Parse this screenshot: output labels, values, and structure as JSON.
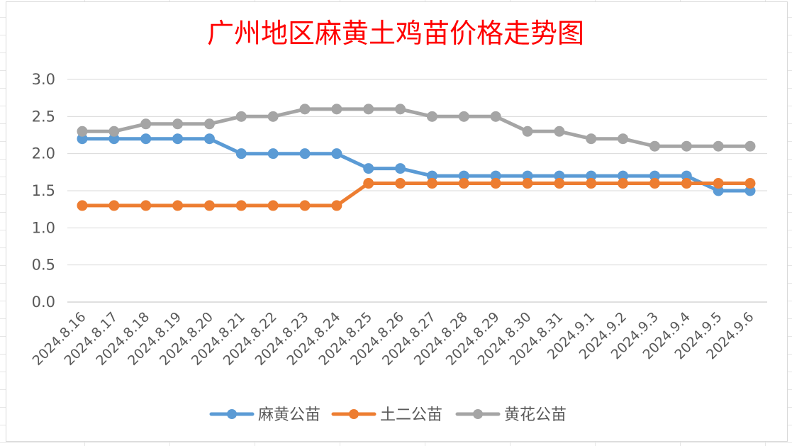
{
  "chart_data": {
    "type": "line",
    "title": "广州地区麻黄土鸡苗价格走势图",
    "xlabel": "",
    "ylabel": "",
    "ylim": [
      0,
      3.0
    ],
    "yticks": [
      "0.0",
      "0.5",
      "1.0",
      "1.5",
      "2.0",
      "2.5",
      "3.0"
    ],
    "grid": "horizontal",
    "legend_position": "bottom",
    "categories": [
      "2024.8.16",
      "2024.8.17",
      "2024.8.18",
      "2024.8.19",
      "2024.8.20",
      "2024.8.21",
      "2024.8.22",
      "2024.8.23",
      "2024.8.24",
      "2024.8.25",
      "2024.8.26",
      "2024.8.27",
      "2024.8.28",
      "2024.8.29",
      "2024.8.30",
      "2024.8.31",
      "2024.9.1",
      "2024.9.2",
      "2024.9.3",
      "2024.9.4",
      "2024.9.5",
      "2024.9.6"
    ],
    "series": [
      {
        "name": "麻黄公苗",
        "color": "#5b9bd5",
        "values": [
          2.2,
          2.2,
          2.2,
          2.2,
          2.2,
          2.0,
          2.0,
          2.0,
          2.0,
          1.8,
          1.8,
          1.7,
          1.7,
          1.7,
          1.7,
          1.7,
          1.7,
          1.7,
          1.7,
          1.7,
          1.5,
          1.5
        ]
      },
      {
        "name": "土二公苗",
        "color": "#ed7d31",
        "values": [
          1.3,
          1.3,
          1.3,
          1.3,
          1.3,
          1.3,
          1.3,
          1.3,
          1.3,
          1.6,
          1.6,
          1.6,
          1.6,
          1.6,
          1.6,
          1.6,
          1.6,
          1.6,
          1.6,
          1.6,
          1.6,
          1.6
        ]
      },
      {
        "name": "黄花公苗",
        "color": "#a5a5a5",
        "values": [
          2.3,
          2.3,
          2.4,
          2.4,
          2.4,
          2.5,
          2.5,
          2.6,
          2.6,
          2.6,
          2.6,
          2.5,
          2.5,
          2.5,
          2.3,
          2.3,
          2.2,
          2.2,
          2.1,
          2.1,
          2.1,
          2.1
        ]
      }
    ]
  }
}
